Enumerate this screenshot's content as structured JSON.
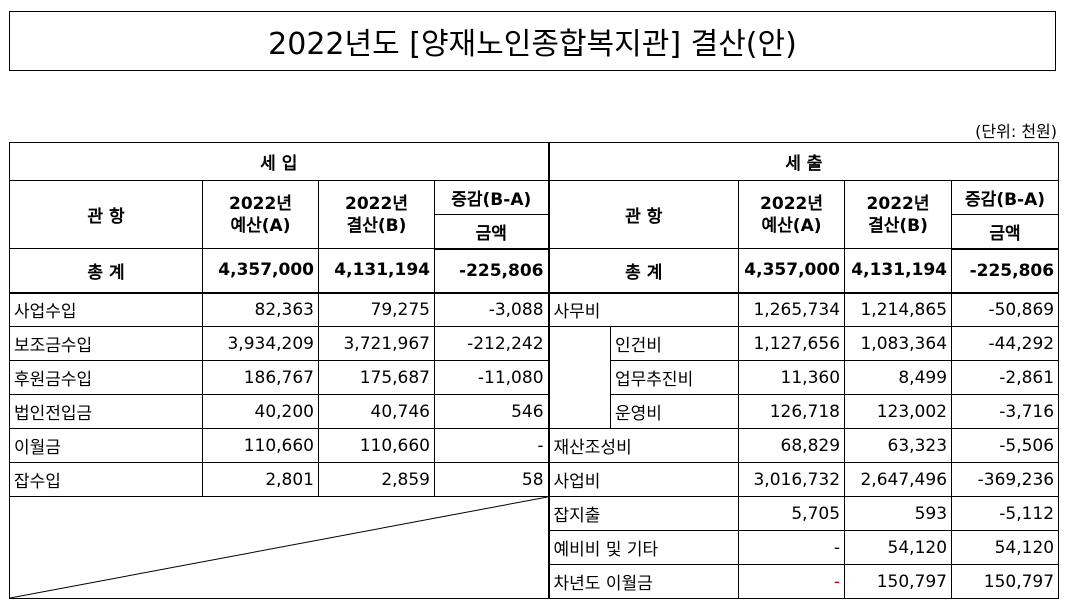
{
  "title": "2022년도 [양재노인종합복지관] 결산(안)",
  "unit": "(단위: 천원)",
  "headers": {
    "income": "세        입",
    "expense": "세        출",
    "gwan_hang": "관    항",
    "budget": [
      "2022년",
      "예산(A)"
    ],
    "settlement": [
      "2022년",
      "결산(B)"
    ],
    "change": "증감(B-A)",
    "amount": "금액"
  },
  "total": {
    "label": "총        계",
    "income": {
      "budget": "4,357,000",
      "settle": "4,131,194",
      "diff": "-225,806"
    },
    "expense": {
      "budget": "4,357,000",
      "settle": "4,131,194",
      "diff": "-225,806"
    }
  },
  "income_rows": [
    {
      "name": "사업수입",
      "budget": "82,363",
      "settle": "79,275",
      "diff": "-3,088"
    },
    {
      "name": "보조금수입",
      "budget": "3,934,209",
      "settle": "3,721,967",
      "diff": "-212,242"
    },
    {
      "name": "후원금수입",
      "budget": "186,767",
      "settle": "175,687",
      "diff": "-11,080"
    },
    {
      "name": "법인전입금",
      "budget": "40,200",
      "settle": "40,746",
      "diff": "546"
    },
    {
      "name": "이월금",
      "budget": "110,660",
      "settle": "110,660",
      "diff": "-"
    },
    {
      "name": "잡수입",
      "budget": "2,801",
      "settle": "2,859",
      "diff": "58"
    }
  ],
  "expense_rows": [
    {
      "name": "사무비",
      "budget": "1,265,734",
      "settle": "1,214,865",
      "diff": "-50,869"
    },
    {
      "name": "인건비",
      "budget": "1,127,656",
      "settle": "1,083,364",
      "diff": "-44,292"
    },
    {
      "name": "업무추진비",
      "budget": "11,360",
      "settle": "8,499",
      "diff": "-2,861"
    },
    {
      "name": "운영비",
      "budget": "126,718",
      "settle": "123,002",
      "diff": "-3,716"
    },
    {
      "name": "재산조성비",
      "budget": "68,829",
      "settle": "63,323",
      "diff": "-5,506"
    },
    {
      "name": "사업비",
      "budget": "3,016,732",
      "settle": "2,647,496",
      "diff": "-369,236"
    },
    {
      "name": "잡지출",
      "budget": "5,705",
      "settle": "593",
      "diff": "-5,112"
    },
    {
      "name": "예비비 및 기타",
      "budget": "-",
      "settle": "54,120",
      "diff": "54,120"
    },
    {
      "name": "차년도 이월금",
      "budget": "-",
      "settle": "150,797",
      "diff": "150,797"
    }
  ]
}
